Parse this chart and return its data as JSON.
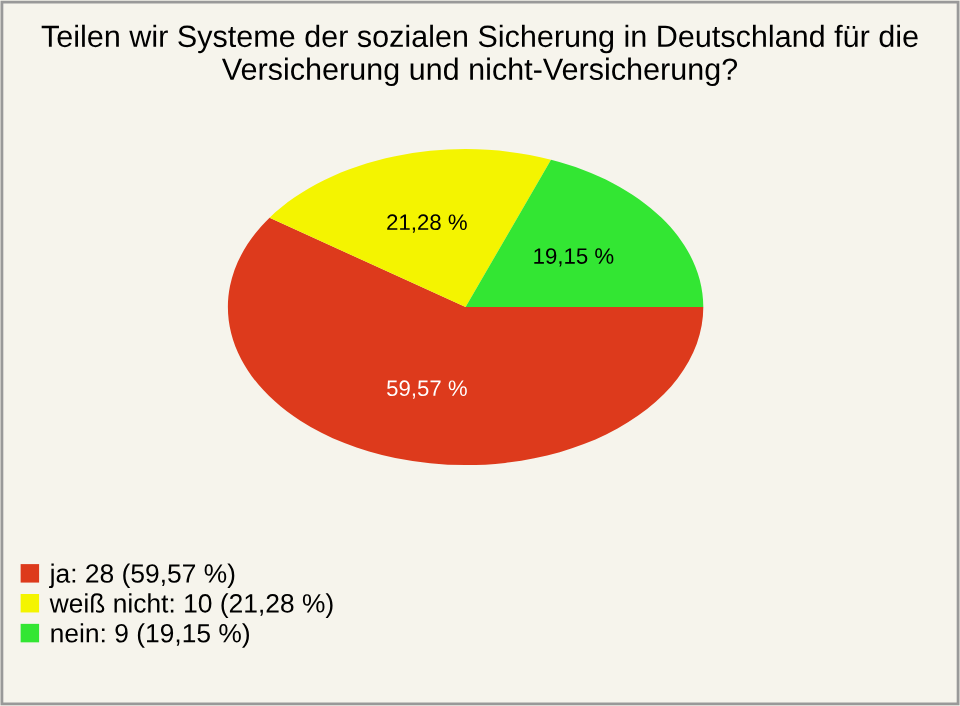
{
  "chart_data": {
    "type": "pie",
    "title": "Teilen wir Systeme der sozialen Sicherung in Deutschland für die Versicherung und nicht-Versicherung?",
    "categories": [
      "ja: 28 (59,57 %)",
      "weiß nicht: 10 (21,28 %)",
      "nein: 9 (19,15 %)"
    ],
    "values": [
      59.57,
      21.28,
      19.15
    ],
    "value_labels": [
      "59,57 %",
      "21,28 %",
      "19,15 %"
    ],
    "colors": [
      "#dd3a1c",
      "#f4f400",
      "#33e633"
    ],
    "legend": "bottom left"
  }
}
